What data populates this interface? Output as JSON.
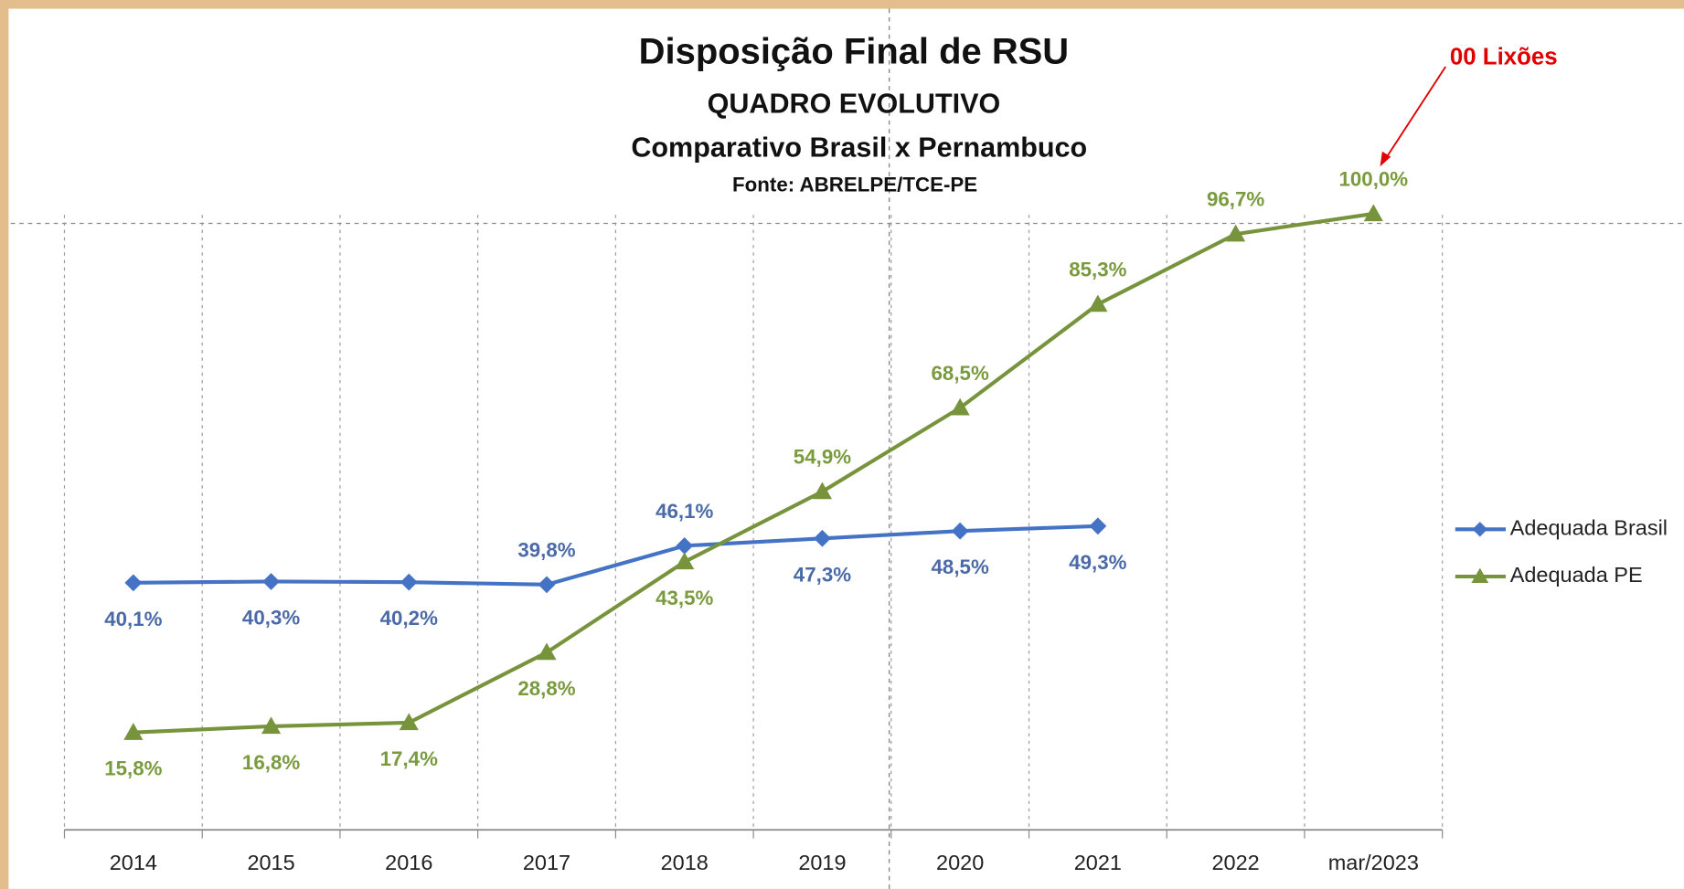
{
  "chart_data": {
    "type": "line",
    "title": "Disposição Final de RSU",
    "subtitle": "QUADRO EVOLUTIVO",
    "subtitle2": "Comparativo Brasil x Pernambuco",
    "source": "Fonte: ABRELPE/TCE-PE",
    "annotation": "00 Lixões",
    "categories": [
      "2014",
      "2015",
      "2016",
      "2017",
      "2018",
      "2019",
      "2020",
      "2021",
      "2022",
      "mar/2023"
    ],
    "series": [
      {
        "name": "Adequada Brasil",
        "color": "#4472c4",
        "values": [
          40.1,
          40.3,
          40.2,
          39.8,
          46.1,
          47.3,
          48.5,
          49.3,
          null,
          null
        ],
        "value_labels": [
          "40,1%",
          "40,3%",
          "40,2%",
          "39,8%",
          "46,1%",
          "47,3%",
          "48,5%",
          "49,3%",
          null,
          null
        ]
      },
      {
        "name": "Adequada PE",
        "color": "#77933c",
        "values": [
          15.8,
          16.8,
          17.4,
          28.8,
          43.5,
          54.9,
          68.5,
          85.3,
          96.7,
          100.0
        ],
        "value_labels": [
          "15,8%",
          "16,8%",
          "17,4%",
          "28,8%",
          "43,5%",
          "54,9%",
          "68,5%",
          "85,3%",
          "96,7%",
          "100,0%"
        ]
      }
    ],
    "ylim": [
      0,
      100
    ],
    "legend": "right"
  }
}
